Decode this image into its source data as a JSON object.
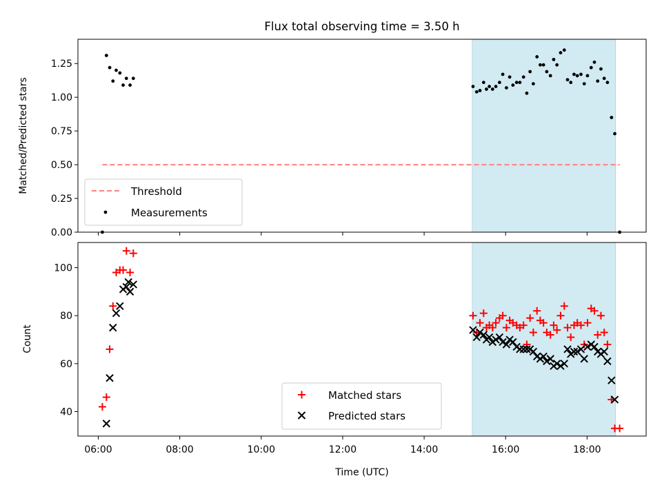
{
  "figure": {
    "title": "Flux total observing time = 3.50 h"
  },
  "chart_data": [
    {
      "type": "scatter",
      "panel": "top",
      "ylabel": "Matched/Predicted stars",
      "xlim": [
        5.5,
        19.45
      ],
      "ylim": [
        0.0,
        1.43
      ],
      "yticks": [
        0.0,
        0.25,
        0.5,
        0.75,
        1.0,
        1.25
      ],
      "ytick_labels": [
        "0.00",
        "0.25",
        "0.50",
        "0.75",
        "1.00",
        "1.25"
      ],
      "grid": false,
      "shaded_interval": {
        "x0": 15.18,
        "x1": 18.7,
        "color": "#add8e6"
      },
      "threshold": {
        "name": "Threshold",
        "x0": 6.1,
        "x1": 18.8,
        "y": 0.5,
        "color": "#ff7f7f"
      },
      "series": [
        {
          "name": "Measurements",
          "color": "#000000",
          "points": [
            [
              6.1,
              0.0
            ],
            [
              6.2,
              1.31
            ],
            [
              6.28,
              1.22
            ],
            [
              6.36,
              1.12
            ],
            [
              6.44,
              1.2
            ],
            [
              6.53,
              1.18
            ],
            [
              6.61,
              1.09
            ],
            [
              6.69,
              1.14
            ],
            [
              6.78,
              1.09
            ],
            [
              6.86,
              1.14
            ],
            [
              15.2,
              1.08
            ],
            [
              15.29,
              1.04
            ],
            [
              15.37,
              1.05
            ],
            [
              15.46,
              1.11
            ],
            [
              15.53,
              1.06
            ],
            [
              15.6,
              1.08
            ],
            [
              15.68,
              1.06
            ],
            [
              15.76,
              1.08
            ],
            [
              15.85,
              1.11
            ],
            [
              15.93,
              1.17
            ],
            [
              16.02,
              1.07
            ],
            [
              16.1,
              1.15
            ],
            [
              16.18,
              1.09
            ],
            [
              16.27,
              1.11
            ],
            [
              16.35,
              1.11
            ],
            [
              16.44,
              1.15
            ],
            [
              16.52,
              1.03
            ],
            [
              16.6,
              1.19
            ],
            [
              16.68,
              1.1
            ],
            [
              16.77,
              1.3
            ],
            [
              16.85,
              1.24
            ],
            [
              16.93,
              1.24
            ],
            [
              17.01,
              1.19
            ],
            [
              17.1,
              1.16
            ],
            [
              17.18,
              1.28
            ],
            [
              17.26,
              1.24
            ],
            [
              17.35,
              1.33
            ],
            [
              17.44,
              1.35
            ],
            [
              17.52,
              1.13
            ],
            [
              17.6,
              1.11
            ],
            [
              17.68,
              1.17
            ],
            [
              17.76,
              1.16
            ],
            [
              17.85,
              1.17
            ],
            [
              17.93,
              1.1
            ],
            [
              18.01,
              1.16
            ],
            [
              18.1,
              1.22
            ],
            [
              18.18,
              1.26
            ],
            [
              18.26,
              1.12
            ],
            [
              18.34,
              1.21
            ],
            [
              18.42,
              1.14
            ],
            [
              18.5,
              1.11
            ],
            [
              18.6,
              0.85
            ],
            [
              18.68,
              0.73
            ],
            [
              18.8,
              0.0
            ]
          ]
        }
      ],
      "legend": {
        "position": "lower-left",
        "entries": [
          {
            "label": "Threshold",
            "marker": "dashed-line",
            "color": "#ff7f7f"
          },
          {
            "label": "Measurements",
            "marker": "dot",
            "color": "#000000"
          }
        ]
      }
    },
    {
      "type": "scatter",
      "panel": "bottom",
      "xlabel": "Time (UTC)",
      "ylabel": "Count",
      "xlim": [
        5.5,
        19.45
      ],
      "ylim": [
        29.8,
        110.5
      ],
      "xticks": [
        6,
        8,
        10,
        12,
        14,
        16,
        18
      ],
      "xtick_labels": [
        "06:00",
        "08:00",
        "10:00",
        "12:00",
        "14:00",
        "16:00",
        "18:00"
      ],
      "yticks": [
        40,
        60,
        80,
        100
      ],
      "ytick_labels": [
        "40",
        "60",
        "80",
        "100"
      ],
      "grid": false,
      "shaded_interval": {
        "x0": 15.18,
        "x1": 18.7,
        "color": "#add8e6"
      },
      "series": [
        {
          "name": "Matched stars",
          "marker": "+",
          "color": "#ff0000",
          "points": [
            [
              6.1,
              42
            ],
            [
              6.2,
              46
            ],
            [
              6.28,
              66
            ],
            [
              6.36,
              84
            ],
            [
              6.44,
              98
            ],
            [
              6.53,
              99
            ],
            [
              6.61,
              99
            ],
            [
              6.69,
              107
            ],
            [
              6.78,
              98
            ],
            [
              6.86,
              106
            ],
            [
              15.2,
              80
            ],
            [
              15.29,
              73
            ],
            [
              15.37,
              77
            ],
            [
              15.46,
              81
            ],
            [
              15.53,
              75
            ],
            [
              15.6,
              76
            ],
            [
              15.68,
              75
            ],
            [
              15.76,
              77
            ],
            [
              15.85,
              79
            ],
            [
              15.93,
              80
            ],
            [
              16.02,
              75
            ],
            [
              16.1,
              78
            ],
            [
              16.18,
              77
            ],
            [
              16.27,
              76
            ],
            [
              16.35,
              75
            ],
            [
              16.44,
              76
            ],
            [
              16.52,
              68
            ],
            [
              16.6,
              79
            ],
            [
              16.68,
              73
            ],
            [
              16.77,
              82
            ],
            [
              16.85,
              78
            ],
            [
              16.93,
              77
            ],
            [
              17.01,
              73
            ],
            [
              17.1,
              72
            ],
            [
              17.18,
              76
            ],
            [
              17.26,
              74
            ],
            [
              17.35,
              80
            ],
            [
              17.44,
              84
            ],
            [
              17.52,
              75
            ],
            [
              17.6,
              71
            ],
            [
              17.68,
              76
            ],
            [
              17.76,
              77
            ],
            [
              17.85,
              76
            ],
            [
              17.93,
              68
            ],
            [
              18.01,
              77
            ],
            [
              18.1,
              83
            ],
            [
              18.18,
              82
            ],
            [
              18.26,
              72
            ],
            [
              18.34,
              80
            ],
            [
              18.42,
              73
            ],
            [
              18.5,
              68
            ],
            [
              18.6,
              45
            ],
            [
              18.68,
              33
            ],
            [
              18.8,
              33
            ]
          ]
        },
        {
          "name": "Predicted stars",
          "marker": "x",
          "color": "#000000",
          "points": [
            [
              6.2,
              35
            ],
            [
              6.28,
              54
            ],
            [
              6.36,
              75
            ],
            [
              6.44,
              81
            ],
            [
              6.53,
              84
            ],
            [
              6.61,
              91
            ],
            [
              6.69,
              92
            ],
            [
              6.74,
              94
            ],
            [
              6.78,
              90
            ],
            [
              6.86,
              93
            ],
            [
              15.2,
              74
            ],
            [
              15.29,
              71
            ],
            [
              15.37,
              73
            ],
            [
              15.46,
              72
            ],
            [
              15.53,
              70
            ],
            [
              15.6,
              71
            ],
            [
              15.68,
              69
            ],
            [
              15.76,
              70
            ],
            [
              15.85,
              71
            ],
            [
              15.93,
              69
            ],
            [
              16.02,
              68
            ],
            [
              16.1,
              70
            ],
            [
              16.18,
              69
            ],
            [
              16.27,
              67
            ],
            [
              16.35,
              66
            ],
            [
              16.44,
              66
            ],
            [
              16.52,
              66
            ],
            [
              16.6,
              66
            ],
            [
              16.68,
              65
            ],
            [
              16.77,
              63
            ],
            [
              16.85,
              62
            ],
            [
              16.93,
              63
            ],
            [
              17.01,
              61
            ],
            [
              17.1,
              62
            ],
            [
              17.18,
              59
            ],
            [
              17.26,
              60
            ],
            [
              17.35,
              59
            ],
            [
              17.44,
              60
            ],
            [
              17.52,
              66
            ],
            [
              17.6,
              64
            ],
            [
              17.68,
              65
            ],
            [
              17.76,
              65
            ],
            [
              17.85,
              66
            ],
            [
              17.93,
              62
            ],
            [
              18.01,
              67
            ],
            [
              18.1,
              68
            ],
            [
              18.18,
              67
            ],
            [
              18.26,
              65
            ],
            [
              18.34,
              64
            ],
            [
              18.42,
              65
            ],
            [
              18.5,
              61
            ],
            [
              18.6,
              53
            ],
            [
              18.68,
              45
            ]
          ]
        }
      ],
      "legend": {
        "position": "lower-center",
        "entries": [
          {
            "label": "Matched stars",
            "marker": "+",
            "color": "#ff0000"
          },
          {
            "label": "Predicted stars",
            "marker": "x",
            "color": "#000000"
          }
        ]
      }
    }
  ]
}
